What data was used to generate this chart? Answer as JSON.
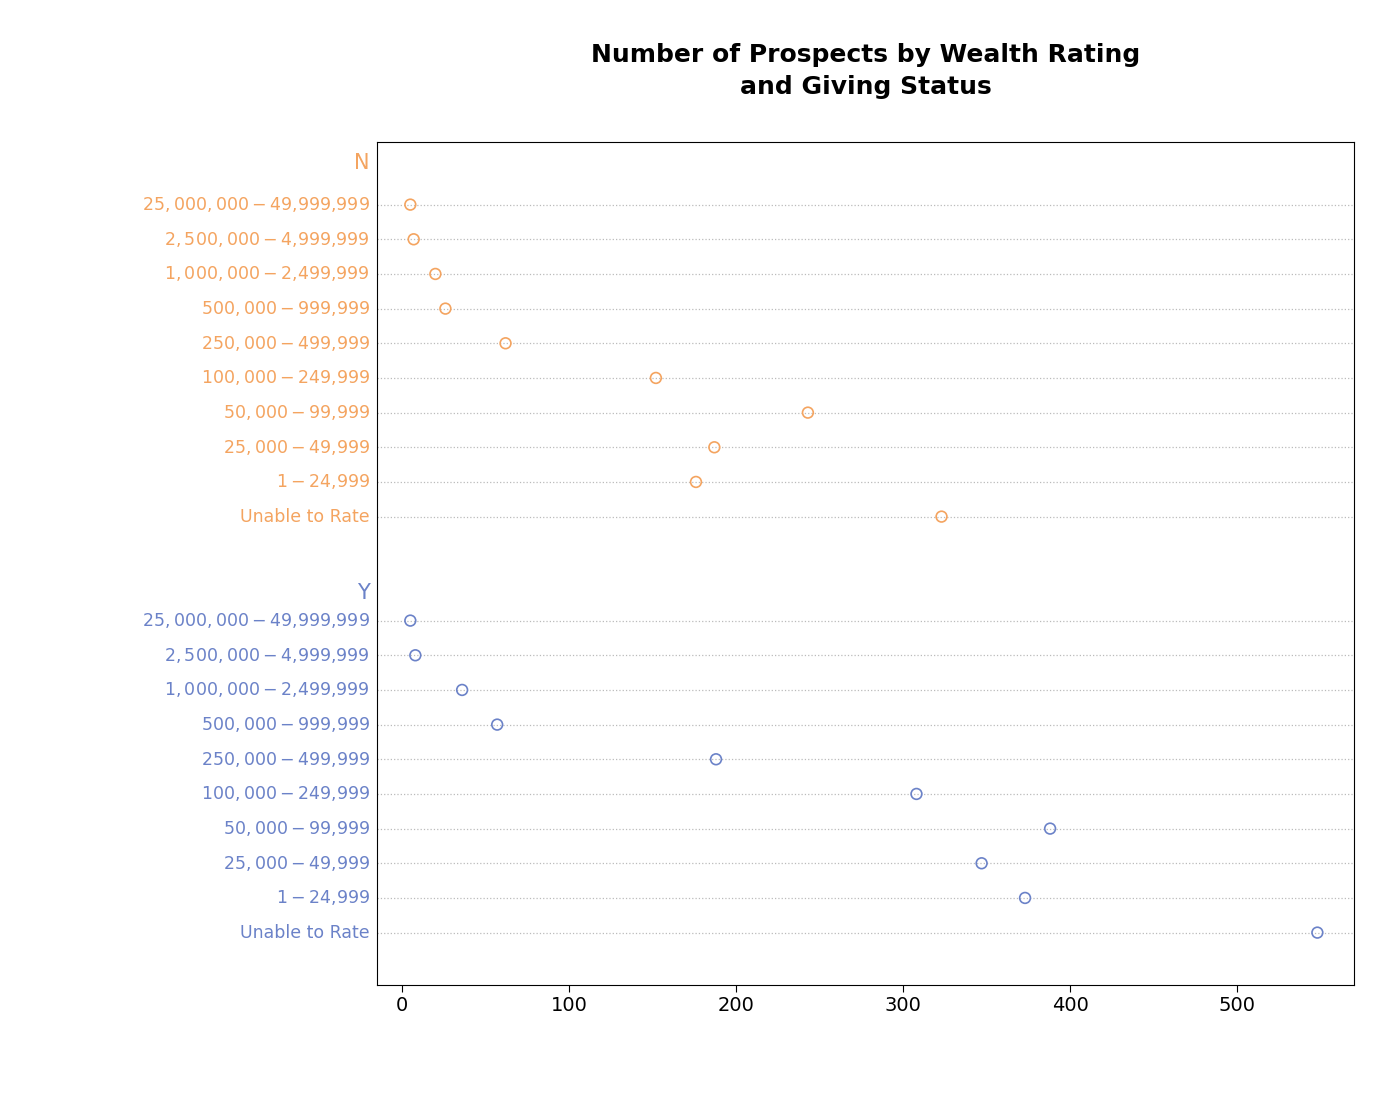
{
  "title": "Number of Prospects by Wealth Rating\nand Giving Status",
  "xlim": [
    -15,
    570
  ],
  "xticks": [
    0,
    100,
    200,
    300,
    400,
    500
  ],
  "background_color": "#ffffff",
  "groups": {
    "N": {
      "color": "#F4A460",
      "categories": [
        "$25,000,000-$49,999,999",
        "$2,500,000-$4,999,999",
        "$1,000,000-$2,499,999",
        "$500,000-$999,999",
        "$250,000-$499,999",
        "$100,000-$249,999",
        "$50,000-$99,999",
        "$25,000-$49,999",
        "$1-$24,999",
        "Unable to Rate"
      ],
      "values": [
        5,
        7,
        20,
        26,
        62,
        152,
        243,
        187,
        176,
        323
      ]
    },
    "Y": {
      "color": "#6B82C8",
      "categories": [
        "$25,000,000-$49,999,999",
        "$2,500,000-$4,999,999",
        "$1,000,000-$2,499,999",
        "$500,000-$999,999",
        "$250,000-$499,999",
        "$100,000-$249,999",
        "$50,000-$99,999",
        "$25,000-$49,999",
        "$1-$24,999",
        "Unable to Rate"
      ],
      "values": [
        5,
        8,
        36,
        57,
        188,
        308,
        388,
        347,
        373,
        548
      ]
    }
  },
  "dot_size": 60,
  "dot_linewidth": 1.2,
  "title_fontsize": 18,
  "label_fontsize": 12.5,
  "tick_fontsize": 14,
  "group_label_fontsize": 15
}
